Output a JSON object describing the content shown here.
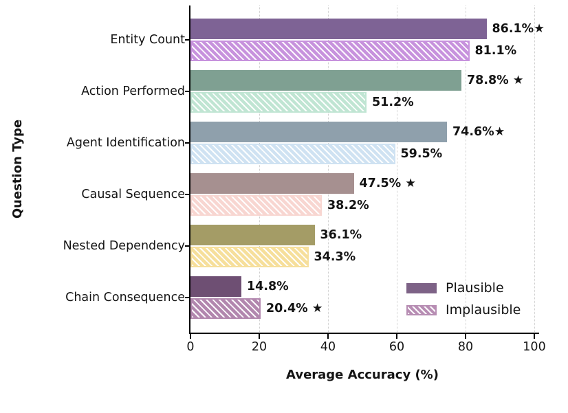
{
  "figure": {
    "background": "#ffffff",
    "text_color": "#141414"
  },
  "chart_data": {
    "type": "bar",
    "orientation": "horizontal",
    "title": "",
    "xlabel": "Average Accuracy (%)",
    "ylabel": "Question Type",
    "xlim": [
      0,
      100
    ],
    "xticks": [
      0,
      20,
      40,
      60,
      80,
      100
    ],
    "grid": "vertical dotted gridlines at x ticks",
    "significance_marker": "★",
    "categories": [
      "Entity Count",
      "Action Performed",
      "Agent Identification",
      "Causal Sequence",
      "Nested Dependency",
      "Chain Consequence"
    ],
    "series": [
      {
        "name": "Plausible",
        "style": "solid",
        "values": [
          86.1,
          78.8,
          74.6,
          47.5,
          36.1,
          14.8
        ],
        "value_labels": [
          "86.1%★",
          "78.8% ★",
          "74.6%★",
          "47.5% ★",
          "36.1%",
          "14.8%"
        ],
        "colors": [
          "#7e6395",
          "#7fa092",
          "#8fa0ac",
          "#a69090",
          "#a49c66",
          "#6e4f73"
        ]
      },
      {
        "name": "Implausible",
        "style": "hatched",
        "values": [
          81.1,
          51.2,
          59.5,
          38.2,
          34.3,
          20.4
        ],
        "value_labels": [
          "81.1%",
          "51.2%",
          "59.5%",
          "38.2%",
          "34.3%",
          "20.4% ★"
        ],
        "colors": [
          "#c792dd",
          "#c0e5d3",
          "#cfe2f2",
          "#f8d6d1",
          "#f6df9b",
          "#b287ae"
        ]
      }
    ],
    "legend": {
      "position": "lower right",
      "entries": [
        {
          "label": "Plausible",
          "swatch": "solid",
          "color": "#7d6286"
        },
        {
          "label": "Implausible",
          "swatch": "hatched",
          "color": "#b78db3"
        }
      ]
    }
  }
}
